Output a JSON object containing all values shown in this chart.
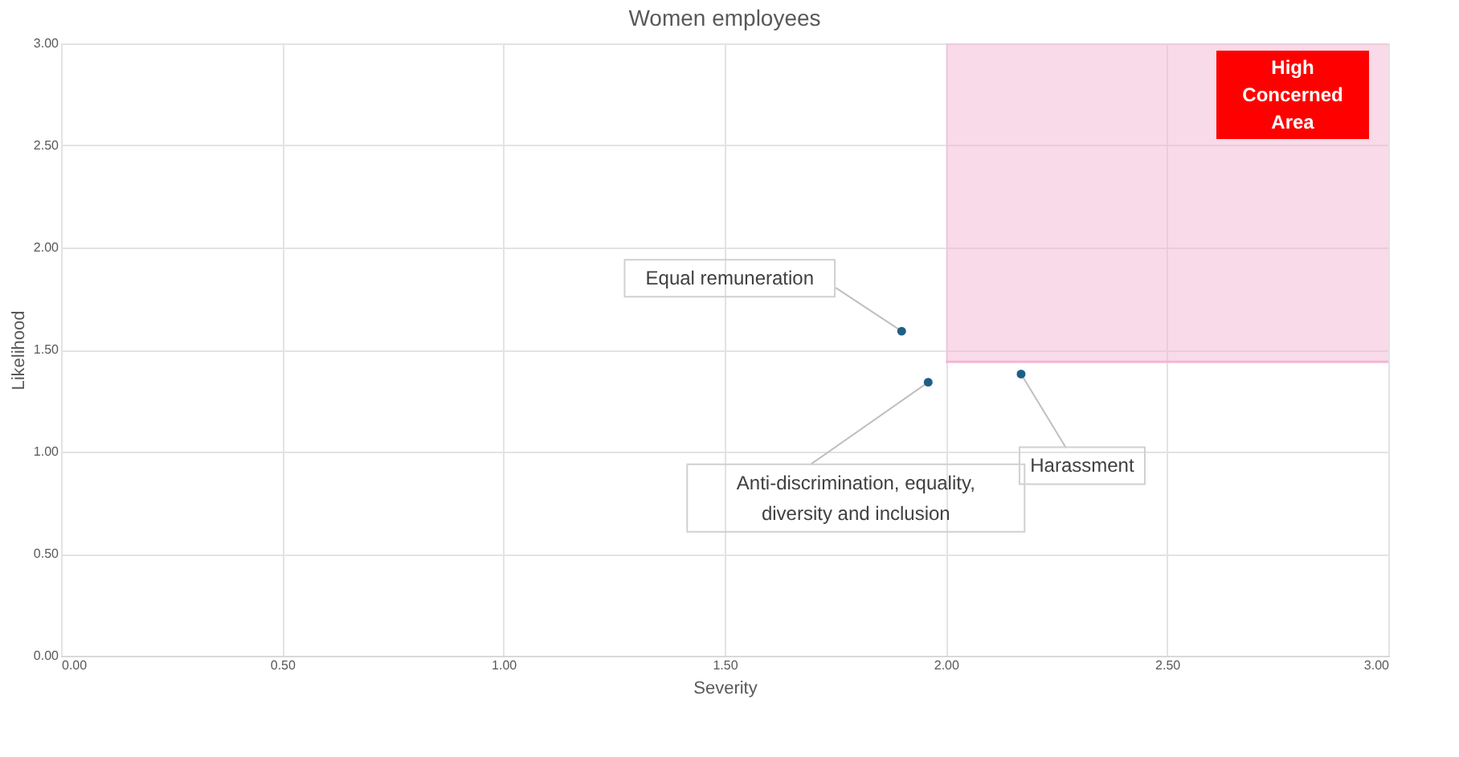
{
  "chart_data": {
    "type": "scatter",
    "title": "Women employees",
    "xlabel": "Severity",
    "ylabel": "Likelihood",
    "series": [
      {
        "type": "line",
        "x": [
          2.0,
          3.0
        ],
        "values": [
          1.44,
          1.44
        ],
        "lower": [
          1.44,
          1.44
        ],
        "upper": [
          3.0,
          3.0
        ],
        "color": "#f4b6d2"
      },
      {
        "x": [
          1.9,
          1.96,
          2.17
        ],
        "values": [
          1.59,
          1.34,
          1.38
        ],
        "color": "#1f5f86",
        "marker": "circle"
      }
    ],
    "legend": false,
    "xlim": [
      0,
      3
    ],
    "ylim": [
      0,
      3
    ],
    "xticks": [
      {
        "value": 0,
        "label": "0.00"
      },
      {
        "value": 0.5,
        "label": "0.50"
      },
      {
        "value": 1,
        "label": "1.00"
      },
      {
        "value": 1.5,
        "label": "1.50"
      },
      {
        "value": 2,
        "label": "2.00"
      },
      {
        "value": 2.5,
        "label": "2.50"
      },
      {
        "value": 3,
        "label": "3.00"
      }
    ],
    "yticks": [
      {
        "value": 0,
        "label": "0.00"
      },
      {
        "value": 0.5,
        "label": "0.50"
      },
      {
        "value": 1,
        "label": "1.00"
      },
      {
        "value": 1.5,
        "label": "1.50"
      },
      {
        "value": 2,
        "label": "2.00"
      },
      {
        "value": 2.5,
        "label": "2.50"
      },
      {
        "value": 3,
        "label": "3.00"
      }
    ],
    "grid": true,
    "annotations": [
      {
        "text": "Equal remuneration",
        "x": 1.9,
        "y": 1.59
      },
      {
        "text": "Anti-discrimination, equality, diversity and inclusion",
        "x": 1.96,
        "y": 1.34
      },
      {
        "text": "Harassment",
        "x": 2.17,
        "y": 1.38
      },
      "High Concerned Area"
    ]
  }
}
